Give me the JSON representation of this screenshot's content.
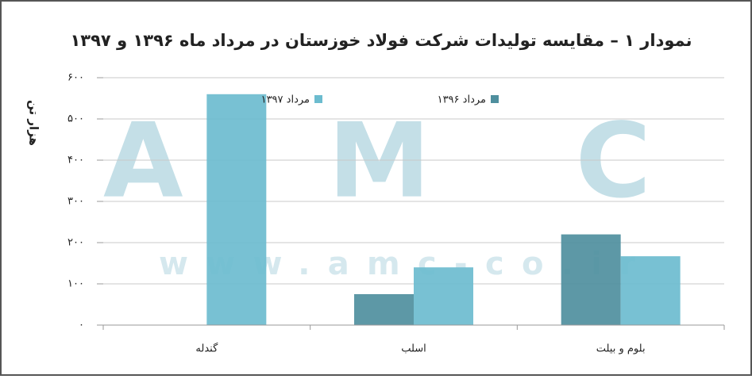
{
  "chart_data": {
    "type": "bar",
    "title": "نمودار ۱ – مقایسه تولیدات شرکت فولاد خوزستان در مرداد ماه ۱۳۹۶ و ۱۳۹۷",
    "y_label": "هزار تن",
    "watermark": "AMC",
    "watermark_url": "www.amc-co.ir",
    "categories": [
      "گندله",
      "اسلب",
      "بلوم و بیلت"
    ],
    "series": [
      {
        "name": "مرداد ۱۳۹۶",
        "color": "#4f8f9e",
        "values": [
          0,
          75,
          220
        ]
      },
      {
        "name": "مرداد ۱۳۹۷",
        "color": "#6cbccf",
        "values": [
          560,
          140,
          167
        ]
      }
    ],
    "ylim": [
      0,
      600
    ],
    "yticks": [
      {
        "value": 0,
        "label": "۰"
      },
      {
        "value": 100,
        "label": "۱۰۰"
      },
      {
        "value": 200,
        "label": "۲۰۰"
      },
      {
        "value": 300,
        "label": "۳۰۰"
      },
      {
        "value": 400,
        "label": "۴۰۰"
      },
      {
        "value": 500,
        "label": "۵۰۰"
      },
      {
        "value": 600,
        "label": "۶۰۰"
      }
    ],
    "grid": true
  }
}
